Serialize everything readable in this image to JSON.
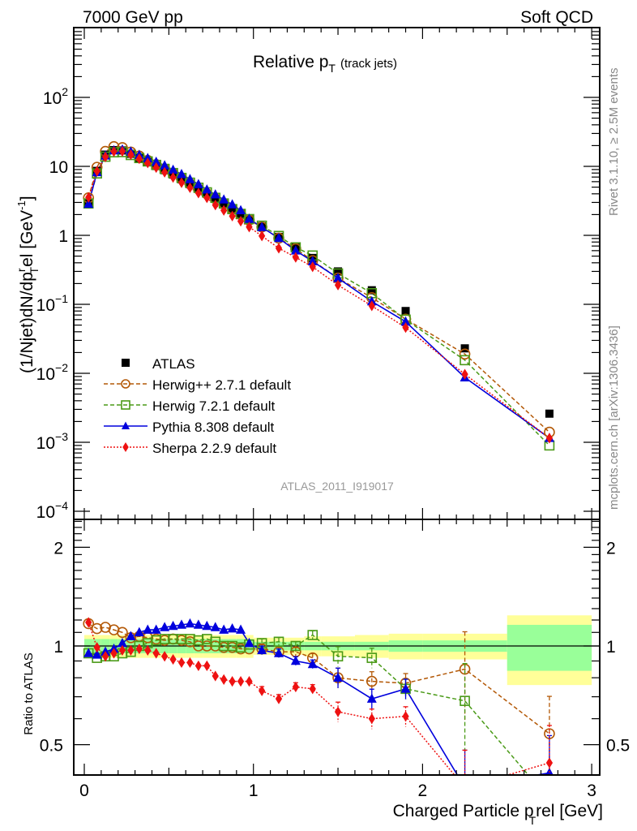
{
  "header": {
    "left_label": "7000 GeV pp",
    "right_label": "Soft QCD"
  },
  "side_labels": {
    "rivet": "Rivet 3.1.10, ≥ 2.5M events",
    "mcplots": "mcplots.cern.ch [arXiv:1306.3436]"
  },
  "chart_data": [
    {
      "type": "scatter",
      "panel": "main",
      "title": "Relative p",
      "title_sub": "T",
      "title_suffix": "(track jets)",
      "analysis_id": "ATLAS_2011_I919017",
      "ylabel": "(1/Njet)dN/dpᵀrel [GeV⁻¹]",
      "ylabel_parts": {
        "a": "(1/Njet)dN/dp",
        "sup": "r",
        "sub": "T",
        "b": "el [GeV",
        "sup2": "-1",
        "c": "]"
      },
      "yscale": "log",
      "ylim": [
        0.0001,
        1000
      ],
      "xlim": [
        -0.06,
        3.06
      ],
      "ytick_labels": [
        {
          "v": 100,
          "base": "10",
          "exp": "2"
        },
        {
          "v": 10,
          "base": "10",
          "exp": ""
        },
        {
          "v": 1,
          "base": "1",
          "exp": ""
        },
        {
          "v": 0.1,
          "base": "10",
          "exp": "−1"
        },
        {
          "v": 0.01,
          "base": "10",
          "exp": "−2"
        },
        {
          "v": 0.001,
          "base": "10",
          "exp": "−3"
        },
        {
          "v": 0.0001,
          "base": "10",
          "exp": "−4"
        }
      ],
      "legend_position": "lower-left",
      "x": [
        0.025,
        0.075,
        0.125,
        0.175,
        0.225,
        0.275,
        0.325,
        0.375,
        0.425,
        0.475,
        0.525,
        0.575,
        0.625,
        0.675,
        0.725,
        0.775,
        0.825,
        0.875,
        0.925,
        0.975,
        1.05,
        1.15,
        1.25,
        1.35,
        1.5,
        1.7,
        1.9,
        2.25,
        2.75
      ],
      "series": [
        {
          "name": "ATLAS",
          "marker": "square-filled",
          "color": "#000000",
          "line": "none",
          "values": [
            3.0,
            8.6,
            14.8,
            17.2,
            17.0,
            15.2,
            13.2,
            11.6,
            10.1,
            8.8,
            7.6,
            6.5,
            5.5,
            4.7,
            4.0,
            3.4,
            2.9,
            2.45,
            2.05,
            1.7,
            1.35,
            0.95,
            0.67,
            0.47,
            0.3,
            0.16,
            0.08,
            0.023,
            0.0026
          ]
        },
        {
          "name": "Herwig++ 2.7.1 default",
          "marker": "circle-open",
          "color": "#b35806",
          "line": "dashed",
          "values": [
            3.5,
            9.7,
            16.5,
            19.3,
            18.7,
            16.1,
            14.1,
            12.2,
            10.6,
            9.1,
            7.9,
            6.7,
            5.6,
            4.7,
            4.0,
            3.4,
            2.88,
            2.43,
            2.0,
            1.66,
            1.32,
            0.91,
            0.64,
            0.43,
            0.24,
            0.125,
            0.061,
            0.019,
            0.0014
          ]
        },
        {
          "name": "Herwig 7.2.1 default",
          "marker": "square-open",
          "color": "#4a9a17",
          "line": "dashed",
          "values": [
            2.9,
            7.9,
            13.8,
            16.0,
            16.1,
            14.6,
            13.2,
            11.8,
            10.5,
            9.2,
            8.0,
            6.8,
            5.8,
            4.9,
            4.2,
            3.5,
            2.9,
            2.4,
            2.05,
            1.72,
            1.38,
            0.98,
            0.67,
            0.51,
            0.28,
            0.145,
            0.06,
            0.0155,
            0.0009
          ]
        },
        {
          "name": "Pythia 8.308 default",
          "marker": "triangle-filled",
          "color": "#0000dd",
          "line": "solid",
          "values": [
            2.85,
            8.2,
            14.3,
            17.0,
            17.5,
            16.3,
            14.6,
            13.1,
            11.6,
            10.3,
            8.9,
            7.7,
            6.5,
            5.5,
            4.6,
            3.9,
            3.3,
            2.8,
            2.3,
            1.73,
            1.31,
            0.91,
            0.6,
            0.42,
            0.24,
            0.11,
            0.056,
            0.0087,
            0.00115
          ]
        },
        {
          "name": "Sherpa 2.2.9 default",
          "marker": "diamond-filled",
          "color": "#ee1111",
          "line": "dotted",
          "values": [
            3.55,
            8.5,
            13.7,
            16.4,
            16.5,
            14.8,
            12.9,
            11.2,
            9.6,
            8.2,
            6.9,
            5.8,
            4.9,
            4.1,
            3.5,
            2.75,
            2.3,
            1.9,
            1.6,
            1.32,
            0.98,
            0.65,
            0.48,
            0.35,
            0.19,
            0.095,
            0.046,
            0.0097,
            0.00115
          ]
        }
      ]
    },
    {
      "type": "scatter",
      "panel": "ratio",
      "ylabel": "Ratio to ATLAS",
      "xlabel": "Charged Particle p",
      "xlabel_sub": "T",
      "xlabel_suffix": "rel [GeV]",
      "yscale": "log",
      "ylim": [
        0.42,
        2.6
      ],
      "xlim": [
        -0.06,
        3.06
      ],
      "xtick_labels": [
        "0",
        "1",
        "2",
        "3"
      ],
      "ytick_labels": [
        "0.5",
        "1",
        "2"
      ],
      "reference_line": 1,
      "bands": {
        "x_edges": [
          0.0,
          0.05,
          0.1,
          0.15,
          0.2,
          0.25,
          0.3,
          0.35,
          0.4,
          0.45,
          0.5,
          0.55,
          0.6,
          0.65,
          0.7,
          0.75,
          0.8,
          0.85,
          0.9,
          0.95,
          1.0,
          1.1,
          1.2,
          1.3,
          1.4,
          1.6,
          1.8,
          2.0,
          2.5,
          3.0
        ],
        "inner_half_width": [
          0.05,
          0.05,
          0.05,
          0.05,
          0.05,
          0.05,
          0.05,
          0.05,
          0.05,
          0.05,
          0.05,
          0.05,
          0.05,
          0.05,
          0.05,
          0.05,
          0.05,
          0.05,
          0.05,
          0.05,
          0.03,
          0.03,
          0.03,
          0.03,
          0.03,
          0.03,
          0.04,
          0.04,
          0.16
        ],
        "outer_half_width": [
          0.08,
          0.08,
          0.08,
          0.08,
          0.08,
          0.08,
          0.08,
          0.08,
          0.08,
          0.08,
          0.08,
          0.08,
          0.08,
          0.08,
          0.08,
          0.08,
          0.08,
          0.08,
          0.08,
          0.08,
          0.06,
          0.06,
          0.06,
          0.07,
          0.07,
          0.08,
          0.09,
          0.09,
          0.24
        ],
        "inner_color": "#99ff99",
        "outer_color": "#ffff99"
      },
      "series": [
        {
          "name": "Herwig++ 2.7.1 default",
          "values": [
            1.17,
            1.13,
            1.14,
            1.12,
            1.1,
            1.06,
            1.07,
            1.06,
            1.05,
            1.04,
            1.05,
            1.04,
            1.03,
            1.0,
            1.0,
            1.0,
            0.99,
            0.99,
            0.98,
            0.98,
            0.98,
            0.96,
            0.96,
            0.92,
            0.8,
            0.78,
            0.77,
            0.85,
            0.54
          ]
        },
        {
          "name": "Herwig 7.2.1 default",
          "values": [
            0.95,
            0.92,
            0.93,
            0.93,
            0.95,
            0.96,
            1.0,
            1.02,
            1.04,
            1.05,
            1.05,
            1.05,
            1.05,
            1.04,
            1.05,
            1.03,
            1.0,
            1.0,
            0.99,
            1.01,
            1.02,
            1.03,
            1.0,
            1.08,
            0.93,
            0.92,
            0.74,
            0.68,
            0.34
          ]
        },
        {
          "name": "Pythia 8.308 default",
          "values": [
            0.95,
            0.94,
            0.96,
            0.98,
            1.02,
            1.07,
            1.1,
            1.12,
            1.12,
            1.14,
            1.15,
            1.16,
            1.17,
            1.16,
            1.15,
            1.14,
            1.12,
            1.13,
            1.12,
            1.02,
            0.97,
            0.95,
            0.9,
            0.88,
            0.8,
            0.69,
            0.74,
            0.37,
            0.41
          ]
        },
        {
          "name": "Sherpa 2.2.9 default",
          "values": [
            1.18,
            0.99,
            0.93,
            0.95,
            0.97,
            0.97,
            0.98,
            0.97,
            0.95,
            0.93,
            0.91,
            0.89,
            0.89,
            0.87,
            0.87,
            0.81,
            0.79,
            0.78,
            0.78,
            0.78,
            0.73,
            0.69,
            0.75,
            0.74,
            0.63,
            0.6,
            0.61,
            0.37,
            0.44
          ]
        }
      ]
    }
  ]
}
